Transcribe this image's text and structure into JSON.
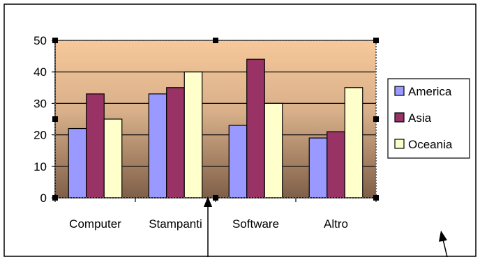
{
  "chart_data": {
    "type": "bar",
    "title": "",
    "xlabel": "",
    "ylabel": "",
    "categories": [
      "Computer",
      "Stampanti",
      "Software",
      "Altro"
    ],
    "series": [
      {
        "name": "America",
        "values": [
          22,
          33,
          23,
          19
        ],
        "color": "#9999ff"
      },
      {
        "name": "Asia",
        "values": [
          33,
          35,
          44,
          21
        ],
        "color": "#993366"
      },
      {
        "name": "Oceania",
        "values": [
          25,
          40,
          30,
          35
        ],
        "color": "#ffffcc"
      }
    ],
    "ylim": [
      0,
      50
    ],
    "yticks": [
      0,
      10,
      20,
      30,
      40,
      50
    ],
    "grid": true,
    "legend_position": "right",
    "plot_background": "gradient-tan-to-brown"
  }
}
